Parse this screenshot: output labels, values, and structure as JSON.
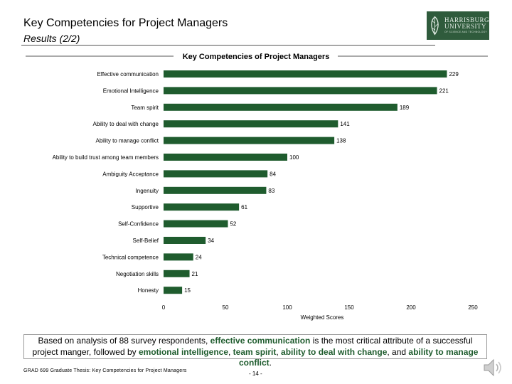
{
  "header": {
    "title": "Key Competencies for Project Managers",
    "subtitle": "Results (2/2)"
  },
  "logo": {
    "line1": "HARRISBURG",
    "line2": "UNIVERSITY",
    "line3": "OF SCIENCE AND TECHNOLOGY"
  },
  "chart_data": {
    "type": "bar",
    "orientation": "horizontal",
    "title": "Key Competencies of Project Managers",
    "xlabel": "Weighted Scores",
    "ylabel": "",
    "xlim": [
      0,
      250
    ],
    "xticks": [
      0,
      50,
      100,
      150,
      200,
      250
    ],
    "categories": [
      "Effective communication",
      "Emotional Intelligence",
      "Team spirit",
      "Ability to deal with change",
      "Ability to manage conflict",
      "Ability to build trust among team members",
      "Ambiguity Acceptance",
      "Ingenuity",
      "Supportive",
      "Self-Confidence",
      "Self-Belief",
      "Technical competence",
      "Negotiation skills",
      "Honesty"
    ],
    "values": [
      229,
      221,
      189,
      141,
      138,
      100,
      84,
      83,
      61,
      52,
      34,
      24,
      21,
      15
    ],
    "bar_color": "#1f5c2e",
    "grid": false
  },
  "summary": {
    "p1": "Based on analysis of 88 survey respondents, ",
    "h1": "effective communication",
    "p2": " is the most critical attribute of a successful project manger, followed by ",
    "h2": "emotional intelligence",
    "p3": ", ",
    "h3": "team spirit",
    "p4": ", ",
    "h4": "ability to deal with change",
    "p5": ", and ",
    "h5": "ability to manage conflict",
    "p6": "."
  },
  "footer": {
    "left": "GRAD 699 Graduate Thesis: Key Competencies for Project Managers",
    "page": "- 14 -"
  },
  "icons": {
    "speaker": "speaker-icon"
  }
}
